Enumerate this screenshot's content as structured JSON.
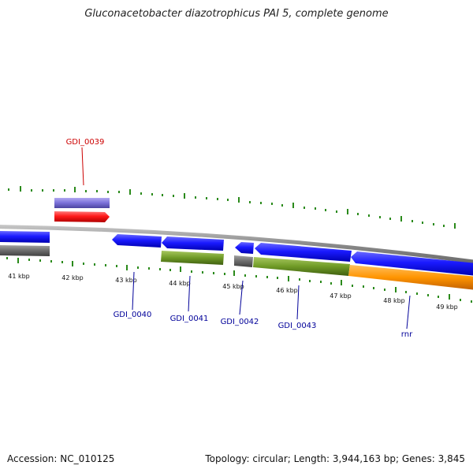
{
  "title": "Gluconacetobacter diazotrophicus PAI 5, complete genome",
  "footer": {
    "accession": "Accession: NC_010125",
    "info": "Topology: circular; Length: 3,944,163 bp; Genes: 3,845"
  },
  "colors": {
    "cds": "#1a1aff",
    "trna": "#ff1a1a",
    "misc": "#7a70d8",
    "gray_feature": "#6b6b6b",
    "green_track": "#6f9a26",
    "orange_track": "#ff9400",
    "tick": "#2a8a1a",
    "backbone": "#888888",
    "label_blue": "#000099",
    "label_red": "#cc0000"
  },
  "scale_labels": [
    "41 kbp",
    "42 kbp",
    "43 kbp",
    "44 kbp",
    "45 kbp",
    "46 kbp",
    "47 kbp",
    "48 kbp",
    "49 kbp"
  ],
  "gene_labels": [
    {
      "text": "GDI_0039",
      "color": "red"
    },
    {
      "text": "GDI_0040",
      "color": "blue"
    },
    {
      "text": "GDI_0041",
      "color": "blue"
    },
    {
      "text": "GDI_0042",
      "color": "blue"
    },
    {
      "text": "GDI_0043",
      "color": "blue"
    },
    {
      "text": "rnr",
      "color": "blue"
    }
  ]
}
